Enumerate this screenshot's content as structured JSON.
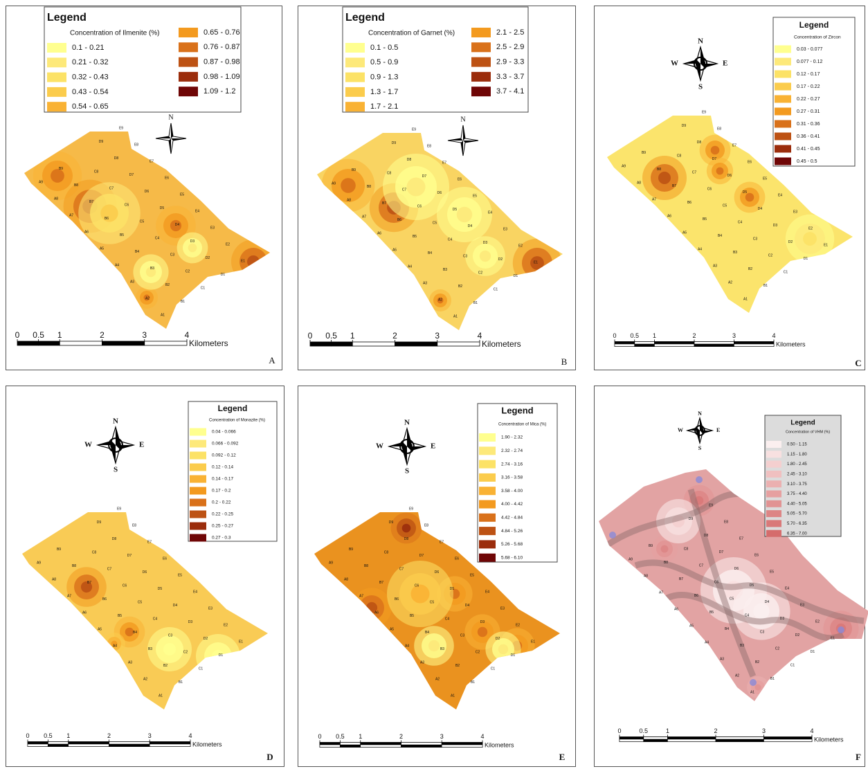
{
  "panels": [
    {
      "letter": "A",
      "compass": [
        "N"
      ],
      "map_color": "#f6ba48",
      "legend": {
        "title": "Legend",
        "subtitle": "Concentration of Ilmenite (%)",
        "classes": [
          "0.1 - 0.21",
          "0.21 - 0.32",
          "0.32 - 0.43",
          "0.43 - 0.54",
          "0.54 - 0.65",
          "0.65 - 0.76",
          "0.76 - 0.87",
          "0.87 - 0.98",
          "0.98 - 1.09",
          "1.09 - 1.2"
        ],
        "colors": [
          "#ffff8f",
          "#fde97a",
          "#fce266",
          "#fbcc4c",
          "#f9b234",
          "#f39a1f",
          "#d9711a",
          "#bd5214",
          "#9b2d0c",
          "#6f0606"
        ]
      },
      "scale": {
        "ticks": [
          0,
          0.5,
          1,
          2,
          3,
          4
        ],
        "unit": "Kilometers"
      }
    },
    {
      "letter": "B",
      "compass": [
        "N"
      ],
      "map_color": "#f9d462",
      "legend": {
        "title": "Legend",
        "subtitle": "Concentration of Garnet (%)",
        "classes": [
          "0.1 - 0.5",
          "0.5 - 0.9",
          "0.9 - 1.3",
          "1.3 - 1.7",
          "1.7 - 2.1",
          "2.1 - 2.5",
          "2.5 - 2.9",
          "2.9 - 3.3",
          "3.3 - 3.7",
          "3.7 - 4.1"
        ],
        "colors": [
          "#ffff8f",
          "#fde97a",
          "#fce266",
          "#fbcc4c",
          "#f9b234",
          "#f39a1f",
          "#d9711a",
          "#bd5214",
          "#9b2d0c",
          "#6f0606"
        ]
      },
      "scale": {
        "ticks": [
          0,
          0.5,
          1,
          2,
          3,
          4
        ],
        "unit": "Kilometers"
      }
    },
    {
      "letter": "C",
      "compass": [
        "N",
        "W",
        "E",
        "S"
      ],
      "map_color": "#fbe46c",
      "legend": {
        "title": "Legend",
        "subtitle": "Concentration of Zircon",
        "classes": [
          "0.03 - 0.077",
          "0.077 - 0.12",
          "0.12 - 0.17",
          "0.17 - 0.22",
          "0.22 - 0.27",
          "0.27 - 0.31",
          "0.31 - 0.36",
          "0.36 - 0.41",
          "0.41 - 0.45",
          "0.45 - 0.5"
        ],
        "colors": [
          "#ffff8f",
          "#fde97a",
          "#fce266",
          "#fbcc4c",
          "#f9b234",
          "#f39a1f",
          "#d9711a",
          "#bd5214",
          "#9b2d0c",
          "#6f0606"
        ]
      },
      "scale": {
        "ticks": [
          0,
          0.5,
          1,
          2,
          3,
          4
        ],
        "unit": "Kilometers"
      }
    },
    {
      "letter": "D",
      "compass": [
        "N",
        "W",
        "E",
        "S"
      ],
      "map_color": "#f9cb55",
      "legend": {
        "title": "Legend",
        "subtitle": "Concentration of Monazite (%)",
        "classes": [
          "0.04 - 0.066",
          "0.066 - 0.092",
          "0.092 - 0.12",
          "0.12 - 0.14",
          "0.14 - 0.17",
          "0.17 - 0.2",
          "0.2 - 0.22",
          "0.22 - 0.25",
          "0.25 - 0.27",
          "0.27 - 0.3"
        ],
        "colors": [
          "#ffff8f",
          "#fde97a",
          "#fce266",
          "#fbcc4c",
          "#f9b234",
          "#f39a1f",
          "#d9711a",
          "#bd5214",
          "#9b2d0c",
          "#6f0606"
        ]
      },
      "scale": {
        "ticks": [
          0,
          0.5,
          1,
          2,
          3,
          4
        ],
        "unit": "Kilometers"
      }
    },
    {
      "letter": "E",
      "compass": [
        "N",
        "W",
        "E",
        "S"
      ],
      "map_color": "#ea921f",
      "legend": {
        "title": "Legend",
        "subtitle": "Concentration of Mica (%)",
        "classes": [
          "1.90 - 2.32",
          "2.32 - 2.74",
          "2.74 - 3.16",
          "3.16 - 3.58",
          "3.58 - 4.00",
          "4.00 - 4.42",
          "4.42 - 4.84",
          "4.84 - 5.26",
          "5.26 - 5.68",
          "5.68 - 6.10"
        ],
        "colors": [
          "#ffff8f",
          "#fde97a",
          "#fce266",
          "#fbcc4c",
          "#f9b234",
          "#f39a1f",
          "#d9711a",
          "#bd5214",
          "#9b2d0c",
          "#6f0606"
        ]
      },
      "scale": {
        "ticks": [
          0,
          0.5,
          1,
          2,
          3,
          4
        ],
        "unit": "Kilometers"
      }
    },
    {
      "letter": "F",
      "compass": [
        "N",
        "W",
        "E",
        "S"
      ],
      "map_color": "#e2a3a3",
      "legend": {
        "title": "Legend",
        "subtitle": "Concentration of VHM (%)",
        "classes": [
          "0.50 - 1.15",
          "1.15 - 1.80",
          "1.80 - 2.45",
          "2.45 - 3.10",
          "3.10 - 3.75",
          "3.75 - 4.40",
          "4.40 - 5.05",
          "5.05 - 5.70",
          "5.70 - 6.35",
          "6.35 - 7.00"
        ],
        "colors": [
          "#fbefef",
          "#f8e0e0",
          "#f4cfcf",
          "#f0c0c0",
          "#ebb0b0",
          "#e6a0a0",
          "#e19393",
          "#dd8585",
          "#d97979",
          "#d56c6c"
        ]
      },
      "scale": {
        "ticks": [
          0,
          0.5,
          1,
          2,
          3,
          4
        ],
        "unit": "Kilometers"
      }
    }
  ],
  "stations": [
    "A1",
    "A2",
    "A3",
    "A4",
    "A5",
    "A6",
    "A7",
    "A8",
    "A9",
    "B1",
    "B2",
    "B3",
    "B4",
    "B5",
    "B6",
    "B7",
    "B8",
    "B9",
    "C1",
    "C2",
    "C3",
    "C4",
    "C5",
    "C6",
    "C7",
    "C8",
    "D1",
    "D2",
    "D3",
    "D4",
    "D5",
    "D6",
    "D7",
    "D8",
    "D9",
    "E1",
    "E2",
    "E3",
    "E4",
    "E5",
    "E6",
    "E7",
    "E8",
    "E9"
  ]
}
